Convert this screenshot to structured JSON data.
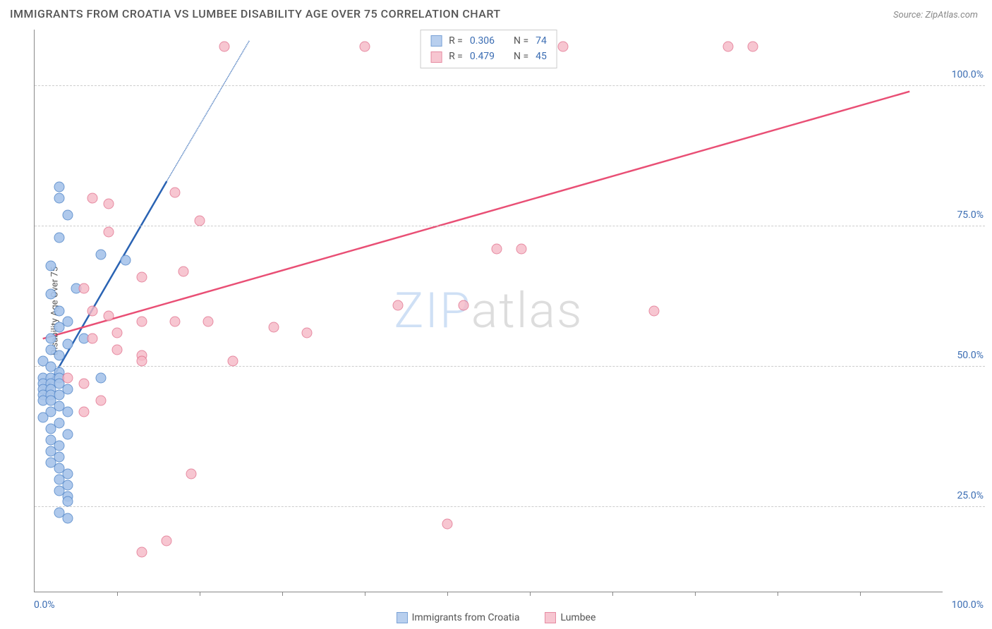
{
  "title": "IMMIGRANTS FROM CROATIA VS LUMBEE DISABILITY AGE OVER 75 CORRELATION CHART",
  "source": "Source: ZipAtlas.com",
  "watermark_a": "ZIP",
  "watermark_b": "atlas",
  "chart": {
    "type": "scatter",
    "ylabel": "Disability Age Over 75",
    "xlim": [
      0,
      110
    ],
    "ylim": [
      10,
      110
    ],
    "ytick_labels": [
      "25.0%",
      "50.0%",
      "75.0%",
      "100.0%"
    ],
    "ytick_values": [
      25,
      50,
      75,
      100
    ],
    "xtick_values": [
      10,
      20,
      30,
      40,
      50,
      60,
      70,
      80,
      90,
      100
    ],
    "xaxis_min_label": "0.0%",
    "xaxis_max_label": "100.0%",
    "background_color": "#ffffff",
    "grid_color": "#cccccc",
    "axis_color": "#888888",
    "label_color": "#3b6db3",
    "series": [
      {
        "name": "Immigrants from Croatia",
        "fill": "#a7c4ea",
        "fill_opacity": 0.55,
        "stroke": "#5a8ccc",
        "line_color": "#2a63b3",
        "R": "0.306",
        "N": "74",
        "trend": {
          "x1": 1,
          "y1": 45,
          "x2": 16,
          "y2": 83,
          "dash_x2": 26,
          "dash_y2": 108
        },
        "points": [
          [
            3,
            82
          ],
          [
            3,
            80
          ],
          [
            4,
            77
          ],
          [
            3,
            73
          ],
          [
            2,
            68
          ],
          [
            5,
            64
          ],
          [
            8,
            70
          ],
          [
            11,
            69
          ],
          [
            2,
            63
          ],
          [
            3,
            60
          ],
          [
            4,
            58
          ],
          [
            3,
            57
          ],
          [
            2,
            55
          ],
          [
            4,
            54
          ],
          [
            6,
            55
          ],
          [
            8,
            48
          ],
          [
            2,
            53
          ],
          [
            3,
            52
          ],
          [
            1,
            51
          ],
          [
            2,
            50
          ],
          [
            3,
            49
          ],
          [
            1,
            48
          ],
          [
            2,
            48
          ],
          [
            3,
            48
          ],
          [
            1,
            47
          ],
          [
            2,
            47
          ],
          [
            3,
            47
          ],
          [
            4,
            46
          ],
          [
            1,
            46
          ],
          [
            2,
            46
          ],
          [
            1,
            45
          ],
          [
            2,
            45
          ],
          [
            3,
            45
          ],
          [
            1,
            44
          ],
          [
            2,
            44
          ],
          [
            3,
            43
          ],
          [
            4,
            42
          ],
          [
            2,
            42
          ],
          [
            1,
            41
          ],
          [
            3,
            40
          ],
          [
            2,
            39
          ],
          [
            4,
            38
          ],
          [
            2,
            37
          ],
          [
            3,
            36
          ],
          [
            2,
            35
          ],
          [
            3,
            34
          ],
          [
            2,
            33
          ],
          [
            3,
            32
          ],
          [
            4,
            31
          ],
          [
            3,
            30
          ],
          [
            4,
            29
          ],
          [
            3,
            28
          ],
          [
            4,
            27
          ],
          [
            4,
            26
          ],
          [
            3,
            24
          ],
          [
            4,
            23
          ]
        ]
      },
      {
        "name": "Lumbee",
        "fill": "#f6b8c6",
        "fill_opacity": 0.45,
        "stroke": "#e16f8b",
        "line_color": "#e94f75",
        "R": "0.479",
        "N": "45",
        "trend": {
          "x1": 1,
          "y1": 55,
          "x2": 106,
          "y2": 99
        },
        "points": [
          [
            23,
            107
          ],
          [
            40,
            107
          ],
          [
            64,
            107
          ],
          [
            87,
            107
          ],
          [
            84,
            107
          ],
          [
            7,
            80
          ],
          [
            9,
            79
          ],
          [
            17,
            81
          ],
          [
            20,
            76
          ],
          [
            9,
            74
          ],
          [
            56,
            71
          ],
          [
            59,
            71
          ],
          [
            18,
            67
          ],
          [
            13,
            66
          ],
          [
            6,
            64
          ],
          [
            7,
            60
          ],
          [
            9,
            59
          ],
          [
            10,
            56
          ],
          [
            13,
            58
          ],
          [
            17,
            58
          ],
          [
            21,
            58
          ],
          [
            29,
            57
          ],
          [
            33,
            56
          ],
          [
            44,
            61
          ],
          [
            52,
            61
          ],
          [
            75,
            60
          ],
          [
            7,
            55
          ],
          [
            10,
            53
          ],
          [
            13,
            52
          ],
          [
            13,
            51
          ],
          [
            24,
            51
          ],
          [
            4,
            48
          ],
          [
            8,
            44
          ],
          [
            6,
            42
          ],
          [
            6,
            47
          ],
          [
            19,
            31
          ],
          [
            16,
            19
          ],
          [
            13,
            17
          ],
          [
            50,
            22
          ]
        ]
      }
    ]
  },
  "top_legend_labels": {
    "R": "R =",
    "N": "N ="
  }
}
